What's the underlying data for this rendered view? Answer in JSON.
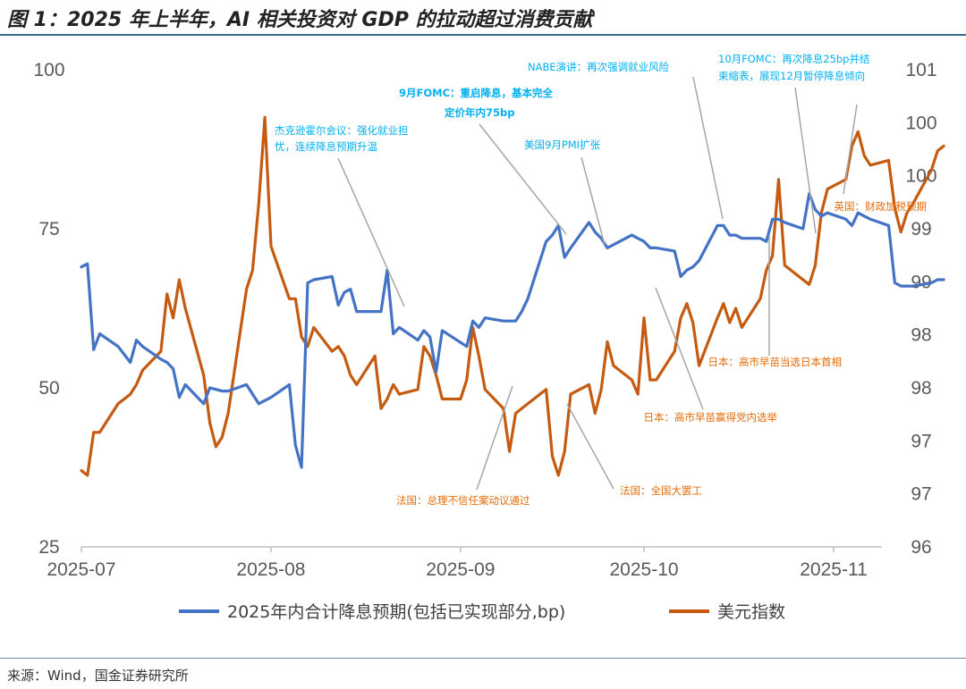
{
  "figure": {
    "title": "图 1：2025 年上半年，AI 相关投资对 GDP 的拉动超过消费贡献",
    "source": "来源：Wind，国金证券研究所"
  },
  "colors": {
    "blue_series": "#4472c4",
    "orange_series": "#c55a11",
    "blue_annotation": "#00b0f0",
    "orange_annotation": "#e36c0a"
  },
  "chart_data": {
    "type": "line",
    "title": "",
    "xlabel": "",
    "ylabel_left": "",
    "ylabel_right": "",
    "x_ticks": [
      "2025-07",
      "2025-08",
      "2025-09",
      "2025-10",
      "2025-11"
    ],
    "y_left": {
      "ticks": [
        "25",
        "50",
        "75",
        "100"
      ],
      "range": [
        25,
        100
      ]
    },
    "y_right": {
      "ticks": [
        "96",
        "97",
        "97",
        "98",
        "98",
        "99",
        "99",
        "100",
        "100",
        "101"
      ],
      "range": [
        96,
        101
      ]
    },
    "grid": false,
    "legend_position": "bottom",
    "series": [
      {
        "name": "2025年内合计降息预期(包括已实现部分,bp)",
        "axis": "left",
        "color": "#4472c4",
        "points": [
          [
            "2025-07-01",
            69
          ],
          [
            "2025-07-02",
            69.5
          ],
          [
            "2025-07-03",
            56
          ],
          [
            "2025-07-04",
            58.5
          ],
          [
            "2025-07-07",
            56.5
          ],
          [
            "2025-07-09",
            54
          ],
          [
            "2025-07-10",
            57.5
          ],
          [
            "2025-07-11",
            56.5
          ],
          [
            "2025-07-14",
            54.5
          ],
          [
            "2025-07-15",
            54
          ],
          [
            "2025-07-16",
            53
          ],
          [
            "2025-07-17",
            48.5
          ],
          [
            "2025-07-18",
            50.5
          ],
          [
            "2025-07-21",
            47.5
          ],
          [
            "2025-07-22",
            50
          ],
          [
            "2025-07-24",
            49.5
          ],
          [
            "2025-07-25",
            49.5
          ],
          [
            "2025-07-28",
            50.5
          ],
          [
            "2025-07-29",
            49
          ],
          [
            "2025-07-30",
            47.5
          ],
          [
            "2025-07-31",
            48
          ],
          [
            "2025-08-01",
            48.5
          ],
          [
            "2025-08-04",
            50.5
          ],
          [
            "2025-08-05",
            41
          ],
          [
            "2025-08-06",
            37.5
          ],
          [
            "2025-08-07",
            66.5
          ],
          [
            "2025-08-08",
            67
          ],
          [
            "2025-08-11",
            67.5
          ],
          [
            "2025-08-12",
            63
          ],
          [
            "2025-08-13",
            65
          ],
          [
            "2025-08-14",
            65.5
          ],
          [
            "2025-08-15",
            62
          ],
          [
            "2025-08-18",
            62
          ],
          [
            "2025-08-19",
            62
          ],
          [
            "2025-08-20",
            68.5
          ],
          [
            "2025-08-21",
            58.5
          ],
          [
            "2025-08-22",
            59.5
          ],
          [
            "2025-08-25",
            57.5
          ],
          [
            "2025-08-26",
            59
          ],
          [
            "2025-08-27",
            58
          ],
          [
            "2025-08-28",
            52.5
          ],
          [
            "2025-08-29",
            59
          ],
          [
            "2025-09-02",
            56.5
          ],
          [
            "2025-09-03",
            60.5
          ],
          [
            "2025-09-04",
            59.5
          ],
          [
            "2025-09-05",
            61
          ],
          [
            "2025-09-08",
            60.5
          ],
          [
            "2025-09-09",
            60.5
          ],
          [
            "2025-09-10",
            60.5
          ],
          [
            "2025-09-11",
            62
          ],
          [
            "2025-09-12",
            64
          ],
          [
            "2025-09-15",
            73
          ],
          [
            "2025-09-16",
            74
          ],
          [
            "2025-09-17",
            75.5
          ],
          [
            "2025-09-18",
            70.5
          ],
          [
            "2025-09-19",
            72
          ],
          [
            "2025-09-22",
            76
          ],
          [
            "2025-09-23",
            74.5
          ],
          [
            "2025-09-24",
            73.5
          ],
          [
            "2025-09-25",
            72
          ],
          [
            "2025-09-26",
            72.5
          ],
          [
            "2025-09-29",
            74
          ],
          [
            "2025-09-30",
            73.5
          ],
          [
            "2025-10-01",
            73
          ],
          [
            "2025-10-02",
            72
          ],
          [
            "2025-10-03",
            72
          ],
          [
            "2025-10-06",
            71.5
          ],
          [
            "2025-10-07",
            67.5
          ],
          [
            "2025-10-08",
            68.5
          ],
          [
            "2025-10-09",
            69
          ],
          [
            "2025-10-10",
            70
          ],
          [
            "2025-10-13",
            75.5
          ],
          [
            "2025-10-14",
            75.5
          ],
          [
            "2025-10-15",
            74
          ],
          [
            "2025-10-16",
            74
          ],
          [
            "2025-10-17",
            73.5
          ],
          [
            "2025-10-20",
            73.5
          ],
          [
            "2025-10-21",
            73
          ],
          [
            "2025-10-22",
            76.5
          ],
          [
            "2025-10-23",
            76.5
          ],
          [
            "2025-10-24",
            76
          ],
          [
            "2025-10-27",
            75
          ],
          [
            "2025-10-28",
            80.5
          ],
          [
            "2025-10-29",
            78
          ],
          [
            "2025-10-30",
            77
          ],
          [
            "2025-10-31",
            77.5
          ],
          [
            "2025-11-03",
            76.5
          ],
          [
            "2025-11-04",
            75.5
          ],
          [
            "2025-11-05",
            77.5
          ],
          [
            "2025-11-06",
            77
          ],
          [
            "2025-11-07",
            76.5
          ],
          [
            "2025-11-10",
            75.5
          ],
          [
            "2025-11-11",
            66.5
          ],
          [
            "2025-11-12",
            66
          ],
          [
            "2025-11-13",
            66
          ],
          [
            "2025-11-14",
            66
          ],
          [
            "2025-11-17",
            66.5
          ],
          [
            "2025-11-18",
            67
          ],
          [
            "2025-11-19",
            67
          ]
        ]
      },
      {
        "name": "美元指数",
        "axis": "right",
        "color": "#c55a11",
        "points": [
          [
            "2025-07-01",
            96.8
          ],
          [
            "2025-07-02",
            96.75
          ],
          [
            "2025-07-03",
            97.2
          ],
          [
            "2025-07-04",
            97.2
          ],
          [
            "2025-07-07",
            97.5
          ],
          [
            "2025-07-08",
            97.55
          ],
          [
            "2025-07-09",
            97.6
          ],
          [
            "2025-07-10",
            97.7
          ],
          [
            "2025-07-11",
            97.85
          ],
          [
            "2025-07-14",
            98.05
          ],
          [
            "2025-07-15",
            98.65
          ],
          [
            "2025-07-16",
            98.4
          ],
          [
            "2025-07-17",
            98.8
          ],
          [
            "2025-07-18",
            98.5
          ],
          [
            "2025-07-21",
            97.8
          ],
          [
            "2025-07-22",
            97.3
          ],
          [
            "2025-07-23",
            97.05
          ],
          [
            "2025-07-24",
            97.15
          ],
          [
            "2025-07-25",
            97.4
          ],
          [
            "2025-07-28",
            98.7
          ],
          [
            "2025-07-29",
            98.9
          ],
          [
            "2025-07-30",
            99.6
          ],
          [
            "2025-07-31",
            100.5
          ],
          [
            "2025-08-01",
            99.15
          ],
          [
            "2025-08-04",
            98.6
          ],
          [
            "2025-08-05",
            98.6
          ],
          [
            "2025-08-06",
            98.2
          ],
          [
            "2025-08-07",
            98.1
          ],
          [
            "2025-08-08",
            98.3
          ],
          [
            "2025-08-11",
            98.05
          ],
          [
            "2025-08-12",
            98.1
          ],
          [
            "2025-08-13",
            98.0
          ],
          [
            "2025-08-14",
            97.8
          ],
          [
            "2025-08-15",
            97.7
          ],
          [
            "2025-08-18",
            98.0
          ],
          [
            "2025-08-19",
            97.45
          ],
          [
            "2025-08-20",
            97.55
          ],
          [
            "2025-08-21",
            97.7
          ],
          [
            "2025-08-22",
            97.6
          ],
          [
            "2025-08-25",
            97.65
          ],
          [
            "2025-08-26",
            98.1
          ],
          [
            "2025-08-27",
            98.0
          ],
          [
            "2025-08-28",
            97.8
          ],
          [
            "2025-08-29",
            97.55
          ],
          [
            "2025-09-01",
            97.55
          ],
          [
            "2025-09-02",
            97.75
          ],
          [
            "2025-09-03",
            98.3
          ],
          [
            "2025-09-04",
            98.0
          ],
          [
            "2025-09-05",
            97.65
          ],
          [
            "2025-09-08",
            97.45
          ],
          [
            "2025-09-09",
            97.0
          ],
          [
            "2025-09-10",
            97.4
          ],
          [
            "2025-09-11",
            97.45
          ],
          [
            "2025-09-12",
            97.5
          ],
          [
            "2025-09-15",
            97.65
          ],
          [
            "2025-09-16",
            96.95
          ],
          [
            "2025-09-17",
            96.75
          ],
          [
            "2025-09-18",
            97.0
          ],
          [
            "2025-09-19",
            97.6
          ],
          [
            "2025-09-22",
            97.7
          ],
          [
            "2025-09-23",
            97.4
          ],
          [
            "2025-09-24",
            97.65
          ],
          [
            "2025-09-25",
            98.15
          ],
          [
            "2025-09-26",
            97.9
          ],
          [
            "2025-09-29",
            97.75
          ],
          [
            "2025-09-30",
            97.6
          ],
          [
            "2025-10-01",
            98.4
          ],
          [
            "2025-10-02",
            97.75
          ],
          [
            "2025-10-03",
            97.75
          ],
          [
            "2025-10-06",
            98.05
          ],
          [
            "2025-10-07",
            98.4
          ],
          [
            "2025-10-08",
            98.55
          ],
          [
            "2025-10-09",
            98.35
          ],
          [
            "2025-10-10",
            97.9
          ],
          [
            "2025-10-13",
            98.4
          ],
          [
            "2025-10-14",
            98.55
          ],
          [
            "2025-10-15",
            98.35
          ],
          [
            "2025-10-16",
            98.5
          ],
          [
            "2025-10-17",
            98.3
          ],
          [
            "2025-10-20",
            98.6
          ],
          [
            "2025-10-21",
            98.9
          ],
          [
            "2025-10-22",
            99.05
          ],
          [
            "2025-10-23",
            99.85
          ],
          [
            "2025-10-24",
            98.95
          ],
          [
            "2025-10-27",
            98.8
          ],
          [
            "2025-10-28",
            98.75
          ],
          [
            "2025-10-29",
            98.95
          ],
          [
            "2025-10-30",
            99.5
          ],
          [
            "2025-10-31",
            99.75
          ],
          [
            "2025-11-03",
            99.85
          ],
          [
            "2025-11-04",
            100.2
          ],
          [
            "2025-11-05",
            100.35
          ],
          [
            "2025-11-06",
            100.1
          ],
          [
            "2025-11-07",
            100.0
          ],
          [
            "2025-11-10",
            100.05
          ],
          [
            "2025-11-11",
            99.55
          ],
          [
            "2025-11-12",
            99.3
          ],
          [
            "2025-11-13",
            99.5
          ],
          [
            "2025-11-14",
            99.6
          ],
          [
            "2025-11-17",
            99.95
          ],
          [
            "2025-11-18",
            100.15
          ],
          [
            "2025-11-19",
            100.2
          ]
        ]
      }
    ],
    "annotations": [
      {
        "text": [
          "杰克逊霍尔会议：强化就业担",
          "忧，连续降息预期升温"
        ],
        "color": "blue",
        "date": "2025-08-22"
      },
      {
        "text": [
          "9月FOMC：重启降息，基本完全",
          "定价年内75bp"
        ],
        "color": "blue",
        "date": "2025-09-17"
      },
      {
        "text": [
          "美国9月PMI扩张"
        ],
        "color": "blue",
        "date": "2025-10-02"
      },
      {
        "text": [
          "NABE演讲：再次强调就业风险"
        ],
        "color": "blue",
        "date": "2025-10-14"
      },
      {
        "text": [
          "10月FOMC：再次降息25bp并结",
          "束缩表，展现12月暂停降息倾向"
        ],
        "color": "blue",
        "date": "2025-10-29"
      },
      {
        "text": [
          "英国：财政加税预期"
        ],
        "color": "orange",
        "date": "2025-11-12"
      },
      {
        "text": [
          "日本：高市早苗当选日本首相"
        ],
        "color": "orange",
        "date": "2025-10-21"
      },
      {
        "text": [
          "日本：高市早苗赢得党内选举"
        ],
        "color": "orange",
        "date": "2025-10-04"
      },
      {
        "text": [
          "法国：全国大罢工"
        ],
        "color": "orange",
        "date": "2025-09-18"
      },
      {
        "text": [
          "法国：总理不信任案动议通过"
        ],
        "color": "orange",
        "date": "2025-09-08"
      }
    ]
  }
}
